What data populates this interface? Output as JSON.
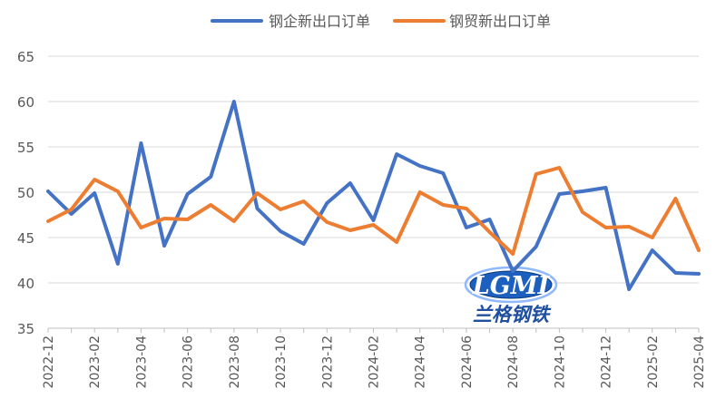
{
  "chart_data": {
    "type": "line",
    "title": "",
    "xlabel": "",
    "ylabel": "",
    "ylim": [
      35,
      65
    ],
    "yticks": [
      35,
      40,
      45,
      50,
      55,
      60,
      65
    ],
    "grid": "horizontal",
    "legend_position": "top",
    "x": [
      "2022-12",
      "2023-01",
      "2023-02",
      "2023-03",
      "2023-04",
      "2023-05",
      "2023-06",
      "2023-07",
      "2023-08",
      "2023-09",
      "2023-10",
      "2023-11",
      "2023-12",
      "2024-01",
      "2024-02",
      "2024-03",
      "2024-04",
      "2024-05",
      "2024-06",
      "2024-07",
      "2024-08",
      "2024-09",
      "2024-10",
      "2024-11",
      "2024-12",
      "2025-01",
      "2025-02",
      "2025-03",
      "2025-04"
    ],
    "xtick_labels": [
      "2022-12",
      "2023-02",
      "2023-04",
      "2023-06",
      "2023-08",
      "2023-10",
      "2023-12",
      "2024-02",
      "2024-04",
      "2024-06",
      "2024-08",
      "2024-10",
      "2024-12",
      "2025-02",
      "2025-04"
    ],
    "series": [
      {
        "name": "钢企新出口订单",
        "color": "#4472C4",
        "values": [
          50.1,
          47.6,
          49.9,
          42.1,
          55.4,
          44.1,
          49.8,
          51.7,
          60.0,
          48.2,
          45.7,
          44.3,
          48.8,
          51.0,
          46.9,
          54.2,
          52.9,
          52.1,
          46.1,
          47.0,
          41.3,
          44.0,
          49.8,
          50.1,
          50.5,
          39.3,
          43.6,
          41.1,
          41.0
        ]
      },
      {
        "name": "钢贸新出口订单",
        "color": "#ED7D31",
        "values": [
          46.8,
          48.1,
          51.4,
          50.1,
          46.1,
          47.1,
          47.0,
          48.6,
          46.8,
          49.9,
          48.1,
          49.0,
          46.7,
          45.8,
          46.4,
          44.5,
          50.0,
          48.6,
          48.2,
          45.6,
          43.2,
          52.0,
          52.7,
          47.8,
          46.1,
          46.2,
          45.0,
          49.3,
          43.6
        ]
      }
    ]
  },
  "watermark": {
    "logo_text": "LGMI",
    "name_text": "兰格钢铁"
  }
}
